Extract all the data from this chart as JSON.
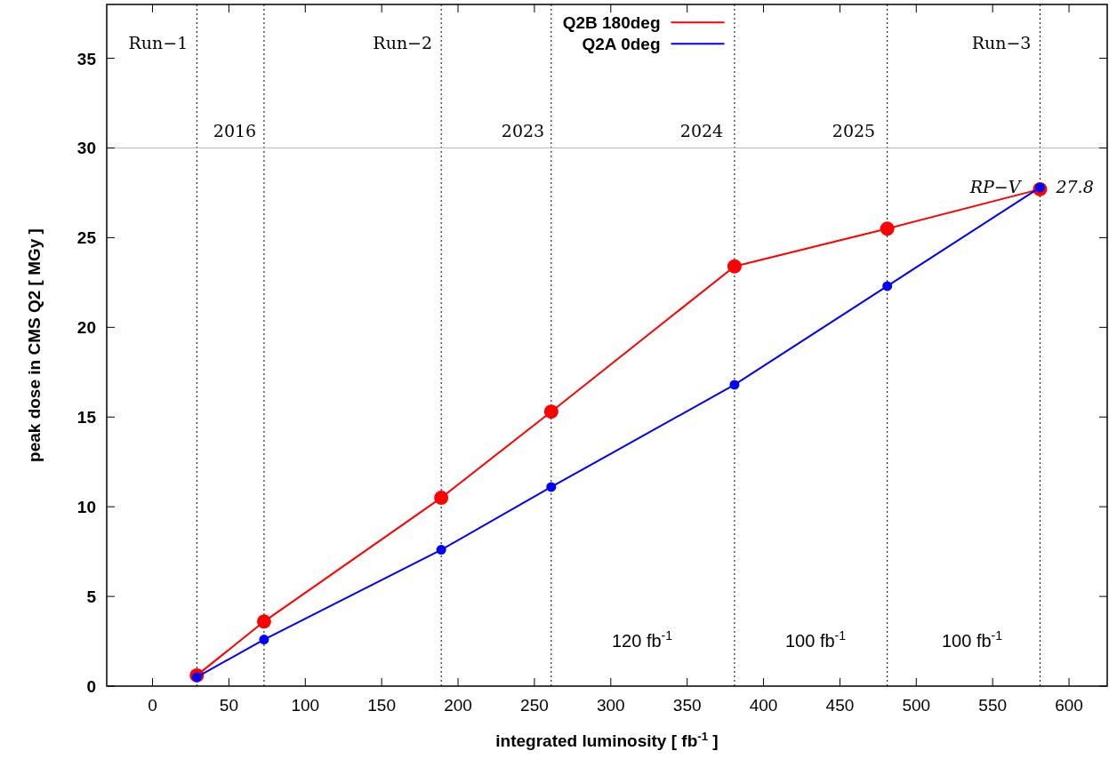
{
  "chart_data": {
    "type": "line",
    "xlabel": "integrated luminosity [ fb$^{-1}$ ]",
    "ylabel": "peak dose in CMS Q2 [ MGy ]",
    "xlim": [
      -30,
      625
    ],
    "ylim": [
      0,
      38
    ],
    "xticks": [
      0,
      50,
      100,
      150,
      200,
      250,
      300,
      350,
      400,
      450,
      500,
      550,
      600
    ],
    "yticks": [
      0,
      5,
      10,
      15,
      20,
      25,
      30,
      35
    ],
    "marker": "circle",
    "legend": "top",
    "series": [
      {
        "name": "Q2B 180deg",
        "color": "#ff0000",
        "x": [
          29,
          73,
          189,
          261,
          381,
          481,
          581
        ],
        "values": [
          0.6,
          3.6,
          10.5,
          15.3,
          23.4,
          25.5,
          27.7
        ]
      },
      {
        "name": "Q2A 0deg",
        "color": "#0000ff",
        "x": [
          29,
          73,
          189,
          261,
          381,
          481,
          581
        ],
        "values": [
          0.5,
          2.6,
          7.6,
          11.1,
          16.8,
          22.3,
          27.8
        ]
      }
    ],
    "ref_lines": [
      {
        "axis": "x",
        "value": 29,
        "label": "Run−1",
        "line_style": "dotted"
      },
      {
        "axis": "x",
        "value": 73,
        "line_style": "dotted"
      },
      {
        "axis": "x",
        "value": 189,
        "label": "Run−2",
        "line_style": "dotted"
      },
      {
        "axis": "x",
        "value": 261,
        "line_style": "dotted"
      },
      {
        "axis": "x",
        "value": 381,
        "line_style": "dotted"
      },
      {
        "axis": "x",
        "value": 481,
        "line_style": "dotted"
      },
      {
        "axis": "x",
        "value": 581,
        "label": "Run−3",
        "line_style": "dotted"
      },
      {
        "axis": "y",
        "value": 30,
        "color": "#bbbbbb",
        "line_style": "solid"
      }
    ],
    "annotations": [
      {
        "text": "RP−V",
        "x": 581,
        "y": 27.8
      },
      {
        "text": "27.8",
        "x": 581,
        "y": 27.8
      },
      "2016",
      "2023",
      "2024",
      "2025",
      "120 fb$^{-1}$",
      "100 fb$^{-1}$",
      "100 fb$^{-1}$"
    ]
  }
}
